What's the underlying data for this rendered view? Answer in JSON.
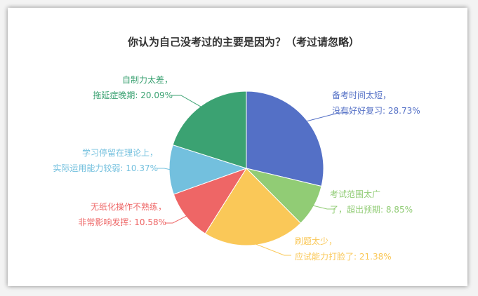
{
  "chart_data": {
    "type": "pie",
    "title": "你认为自己没考过的主要是因为？（考过请忽略）",
    "slices": [
      {
        "name": "备考时间太短，没有好好复习",
        "value": 28.73,
        "color": "#5470c6",
        "label_lines": [
          "备考时间太短，",
          "没有好好复习: 28.73%"
        ]
      },
      {
        "name": "考试范围太广了，超出预期",
        "value": 8.85,
        "color": "#91cc75",
        "label_lines": [
          "考试范围太广",
          "了，超出预期: 8.85%"
        ]
      },
      {
        "name": "刷题太少，应试能力打脸了",
        "value": 21.38,
        "color": "#fac858",
        "label_lines": [
          "刷题太少，",
          "应试能力打脸了: 21.38%"
        ]
      },
      {
        "name": "无纸化操作不熟练，非常影响发挥",
        "value": 10.58,
        "color": "#ee6666",
        "label_lines": [
          "无纸化操作不熟练，",
          "非常影响发挥: 10.58%"
        ]
      },
      {
        "name": "学习停留在理论上，实际运用能力较弱",
        "value": 10.37,
        "color": "#73c0de",
        "label_lines": [
          "学习停留在理论上，",
          "实际运用能力较弱: 10.37%"
        ]
      },
      {
        "name": "自制力太差，拖延症晚期",
        "value": 20.09,
        "color": "#3ba272",
        "label_lines": [
          "自制力太差，",
          "拖延症晚期: 20.09%"
        ]
      }
    ]
  }
}
